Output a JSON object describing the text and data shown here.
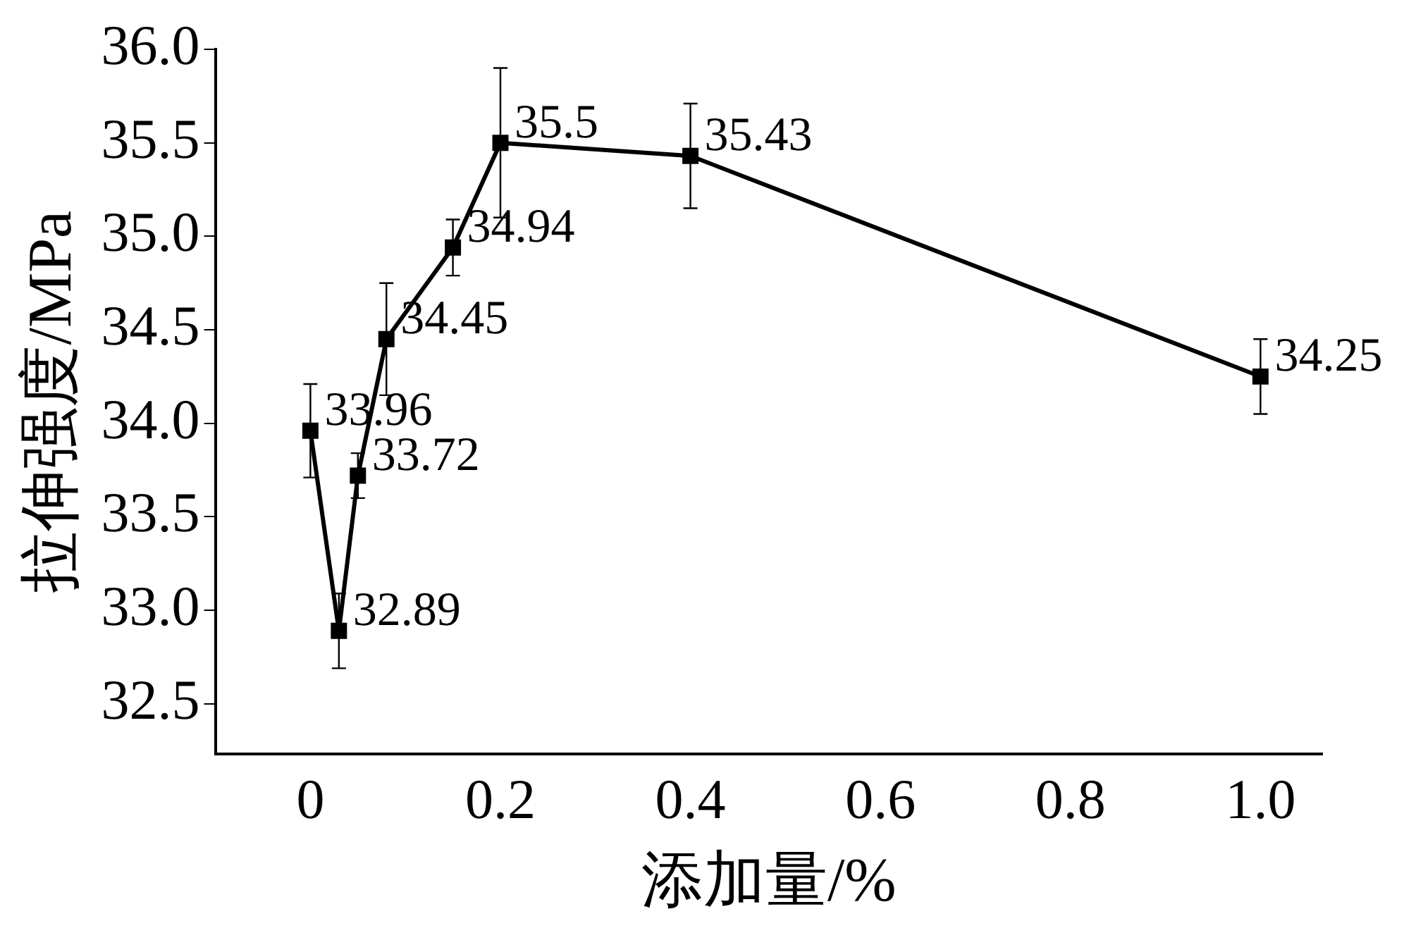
{
  "chart_data": {
    "type": "line",
    "xlabel": "添加量/%",
    "ylabel": "拉伸强度/MPa",
    "x": [
      0,
      0.03,
      0.05,
      0.08,
      0.15,
      0.2,
      0.4,
      1.0
    ],
    "series": [
      {
        "color": "#000000",
        "values": [
          33.96,
          32.89,
          33.72,
          34.45,
          34.94,
          35.5,
          35.43,
          34.25
        ],
        "errors": [
          0.25,
          0.2,
          0.12,
          0.3,
          0.15,
          0.4,
          0.28,
          0.2
        ]
      }
    ],
    "xlim": [
      -0.1,
      1.065
    ],
    "xticks": [
      0,
      0.2,
      0.4,
      0.6,
      0.8,
      {
        "value": 1,
        "label": "1.0"
      }
    ],
    "ylim": [
      32.23,
      36.0
    ],
    "yticks": [
      {
        "value": 32.5,
        "label": "32.5"
      },
      {
        "value": 33,
        "label": "33.0"
      },
      {
        "value": 33.5,
        "label": "33.5"
      },
      {
        "value": 34,
        "label": "34.0"
      },
      {
        "value": 34.5,
        "label": "34.5"
      },
      {
        "value": 35,
        "label": "35.0"
      },
      {
        "value": 35.5,
        "label": "35.5"
      },
      {
        "value": 36,
        "label": "36.0"
      }
    ],
    "marker": "square",
    "line_style": "solid",
    "grid": false,
    "legend": false,
    "data_labels": true
  }
}
